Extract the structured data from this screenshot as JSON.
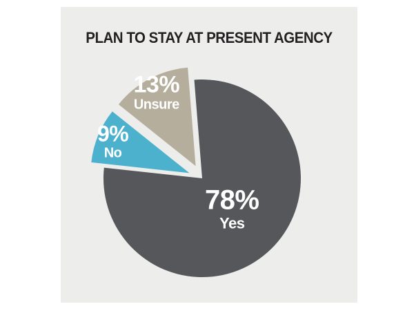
{
  "chart_data": {
    "type": "pie",
    "title": "PLAN TO STAY AT PRESENT AGENCY",
    "total": 100,
    "unit": "%",
    "legend_position": "inside-slices",
    "slices": [
      {
        "label": "Yes",
        "pct": 78,
        "pct_label": "78%",
        "color": "#56575b"
      },
      {
        "label": "No",
        "pct": 9,
        "pct_label": "9%",
        "color": "#4cb1cc"
      },
      {
        "label": "Unsure",
        "pct": 13,
        "pct_label": "13%",
        "color": "#b5ae9d"
      }
    ]
  },
  "colors": {
    "background": "#ffffff",
    "panel": "#ededec",
    "title_text": "#231f20",
    "slice_label_text": "#ffffff"
  }
}
